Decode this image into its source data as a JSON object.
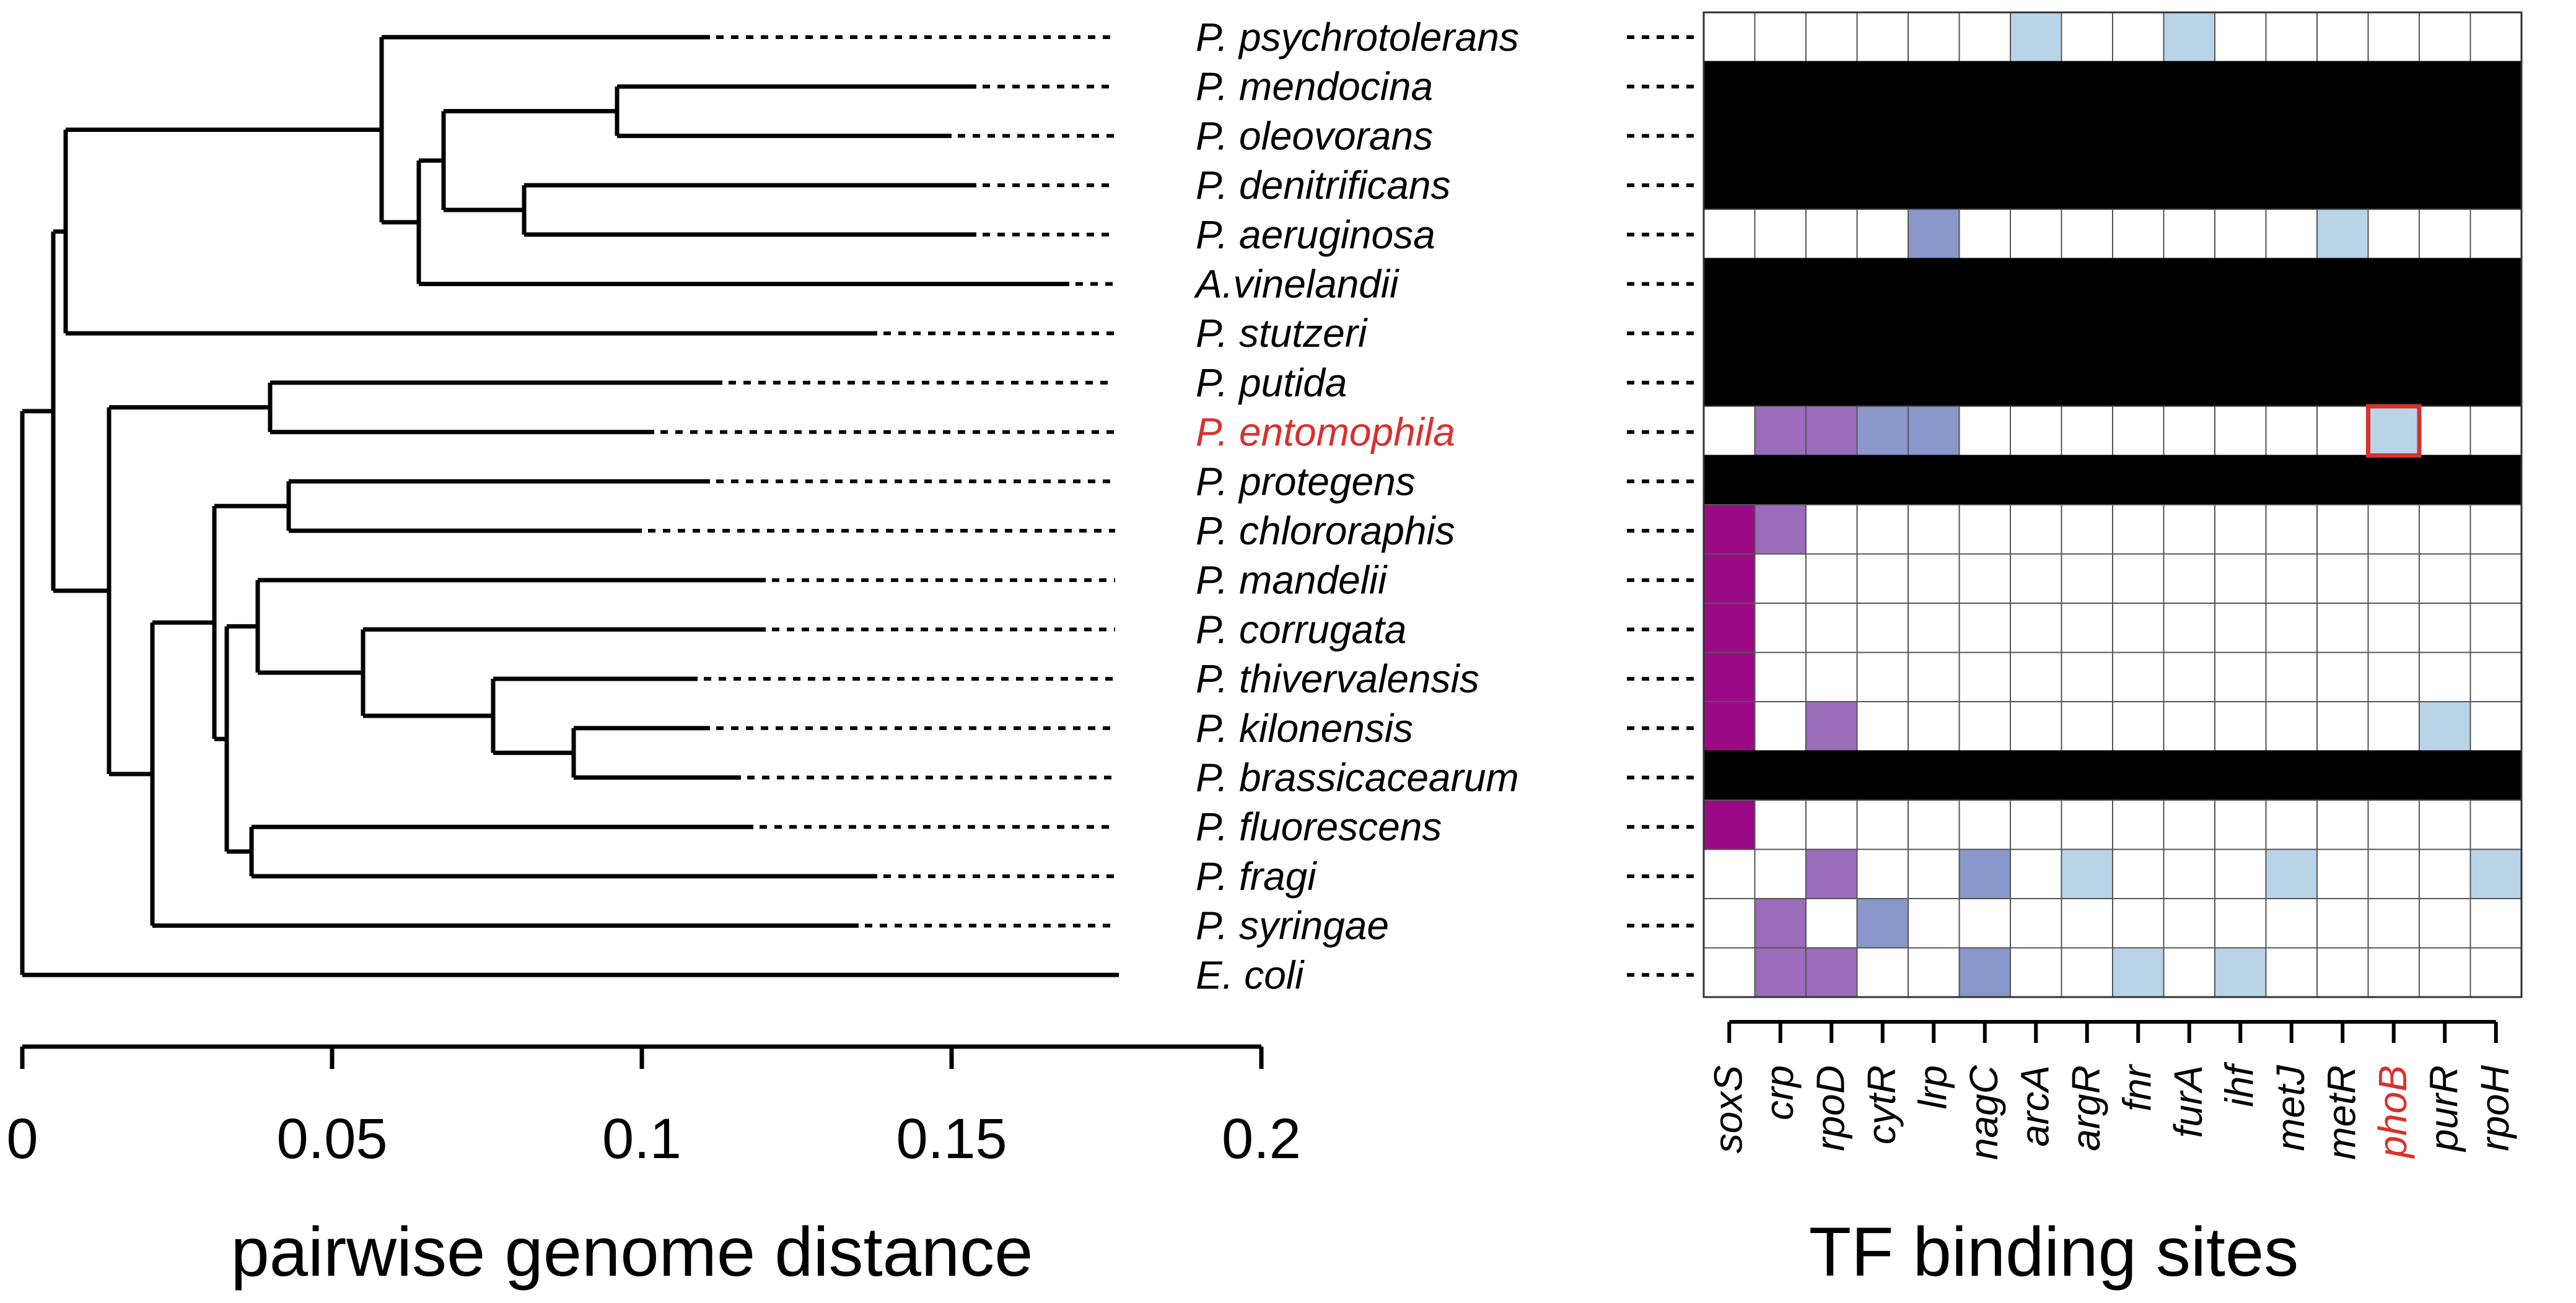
{
  "chart_data": [
    {
      "type": "dendrogram",
      "title": "",
      "xlabel": "pairwise genome distance",
      "xlim": [
        0,
        0.2
      ],
      "xticks": [
        0,
        0.05,
        0.1,
        0.15,
        0.2
      ],
      "xtick_labels": [
        "0",
        "0.05",
        "0.1",
        "0.15",
        "0.2"
      ],
      "species": [
        "P. psychrotolerans",
        "P. mendocina",
        "P. oleovorans",
        "P. denitrificans",
        "P. aeruginosa",
        "A.vinelandii",
        "P. stutzeri",
        "P. putida",
        "P. entomophila",
        "P. protegens",
        "P. chlororaphis",
        "P. mandelii",
        "P. corrugata",
        "P. thivervalensis",
        "P. kilonensis",
        "P. brassicacearum",
        "P. fluorescens",
        "P. fragi",
        "P. syringae",
        "E. coli"
      ],
      "highlight_species": "P. entomophila",
      "tip_distance": [
        0.111,
        0.154,
        0.15,
        0.154,
        0.154,
        0.169,
        0.138,
        0.113,
        0.102,
        0.111,
        0.1,
        0.12,
        0.12,
        0.109,
        0.111,
        0.116,
        0.118,
        0.138,
        0.135,
        0.177
      ],
      "node_height": {
        "psych_rest": 0.058,
        "mend_oleo": 0.096,
        "deni_aeru": 0.081,
        "mend_deni": 0.068,
        "mend_avin": 0.064,
        "pseudo_upper": 0.007,
        "put_ento": 0.04,
        "prot_chlo": 0.043,
        "kilo_bras": 0.089,
        "thiv_kilo": 0.076,
        "corr_thiv": 0.055,
        "mand_corr": 0.038,
        "fluo_frag": 0.037,
        "mand_fluo": 0.033,
        "prot_mand": 0.031,
        "prot_syri": 0.021,
        "put_prot": 0.014,
        "pseudomonas": 0.005,
        "root": 0.0
      }
    },
    {
      "type": "heatmap",
      "xlabel": "TF binding sites",
      "columns": [
        "soxS",
        "crp",
        "rpoD",
        "cytR",
        "lrp",
        "nagC",
        "arcA",
        "argR",
        "fnr",
        "furA",
        "ihf",
        "metJ",
        "metR",
        "phoB",
        "purR",
        "rpoH"
      ],
      "highlight_column": "phoB",
      "highlight_cell": {
        "row": "P. entomophila",
        "column": "phoB"
      },
      "rows": [
        "P. psychrotolerans",
        "P. mendocina",
        "P. oleovorans",
        "P. denitrificans",
        "P. aeruginosa",
        "A.vinelandii",
        "P. stutzeri",
        "P. putida",
        "P. entomophila",
        "P. protegens",
        "P. chlororaphis",
        "P. mandelii",
        "P. corrugata",
        "P. thivervalensis",
        "P. kilonensis",
        "P. brassicacearum",
        "P. fluorescens",
        "P. fragi",
        "P. syringae",
        "E. coli"
      ],
      "colors": {
        "0": "#ffffff",
        "1": "#b9d3e7",
        "2": "#8997cb",
        "3": "#9a6cb9",
        "4": "#9b0a85",
        "black": "#000000",
        "highlight": "#d7312c",
        "grid": "#555555"
      },
      "values": [
        [
          0,
          0,
          0,
          0,
          0,
          0,
          1,
          0,
          0,
          1,
          0,
          0,
          0,
          0,
          0,
          0
        ],
        [
          "black",
          "black",
          "black",
          "black",
          "black",
          "black",
          "black",
          "black",
          "black",
          "black",
          "black",
          "black",
          "black",
          "black",
          "black",
          "black"
        ],
        [
          "black",
          "black",
          "black",
          "black",
          "black",
          "black",
          "black",
          "black",
          "black",
          "black",
          "black",
          "black",
          "black",
          "black",
          "black",
          "black"
        ],
        [
          "black",
          "black",
          "black",
          "black",
          "black",
          "black",
          "black",
          "black",
          "black",
          "black",
          "black",
          "black",
          "black",
          "black",
          "black",
          "black"
        ],
        [
          0,
          0,
          0,
          0,
          2,
          0,
          0,
          0,
          0,
          0,
          0,
          0,
          1,
          0,
          0,
          0
        ],
        [
          "black",
          "black",
          "black",
          "black",
          "black",
          "black",
          "black",
          "black",
          "black",
          "black",
          "black",
          "black",
          "black",
          "black",
          "black",
          "black"
        ],
        [
          "black",
          "black",
          "black",
          "black",
          "black",
          "black",
          "black",
          "black",
          "black",
          "black",
          "black",
          "black",
          "black",
          "black",
          "black",
          "black"
        ],
        [
          "black",
          "black",
          "black",
          "black",
          "black",
          "black",
          "black",
          "black",
          "black",
          "black",
          "black",
          "black",
          "black",
          "black",
          "black",
          "black"
        ],
        [
          0,
          3,
          3,
          2,
          2,
          0,
          0,
          0,
          0,
          0,
          0,
          0,
          0,
          1,
          0,
          0
        ],
        [
          "black",
          "black",
          "black",
          "black",
          "black",
          "black",
          "black",
          "black",
          "black",
          "black",
          "black",
          "black",
          "black",
          "black",
          "black",
          "black"
        ],
        [
          4,
          3,
          0,
          0,
          0,
          0,
          0,
          0,
          0,
          0,
          0,
          0,
          0,
          0,
          0,
          0
        ],
        [
          4,
          0,
          0,
          0,
          0,
          0,
          0,
          0,
          0,
          0,
          0,
          0,
          0,
          0,
          0,
          0
        ],
        [
          4,
          0,
          0,
          0,
          0,
          0,
          0,
          0,
          0,
          0,
          0,
          0,
          0,
          0,
          0,
          0
        ],
        [
          4,
          0,
          0,
          0,
          0,
          0,
          0,
          0,
          0,
          0,
          0,
          0,
          0,
          0,
          0,
          0
        ],
        [
          4,
          0,
          3,
          0,
          0,
          0,
          0,
          0,
          0,
          0,
          0,
          0,
          0,
          0,
          1,
          0
        ],
        [
          "black",
          "black",
          "black",
          "black",
          "black",
          "black",
          "black",
          "black",
          "black",
          "black",
          "black",
          "black",
          "black",
          "black",
          "black",
          "black"
        ],
        [
          4,
          0,
          0,
          0,
          0,
          0,
          0,
          0,
          0,
          0,
          0,
          0,
          0,
          0,
          0,
          0
        ],
        [
          0,
          0,
          3,
          0,
          0,
          2,
          0,
          1,
          0,
          0,
          0,
          1,
          0,
          0,
          0,
          1
        ],
        [
          0,
          3,
          0,
          2,
          0,
          0,
          0,
          0,
          0,
          0,
          0,
          0,
          0,
          0,
          0,
          0
        ],
        [
          0,
          3,
          3,
          0,
          0,
          2,
          0,
          0,
          1,
          0,
          1,
          0,
          0,
          0,
          0,
          0
        ]
      ]
    }
  ]
}
